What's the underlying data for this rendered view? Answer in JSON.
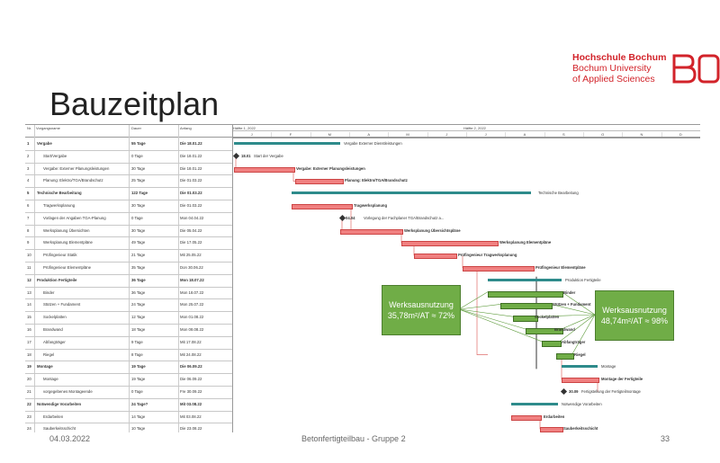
{
  "slide": {
    "title": "Bauzeitplan",
    "logo": {
      "lines": [
        "Hochschule Bochum",
        "Bochum University",
        "of Applied Sciences"
      ]
    },
    "footer": {
      "date": "04.03.2022",
      "center": "Betonfertigteilbau - Gruppe 2",
      "page": "33"
    }
  },
  "gantt": {
    "columns": [
      "Nr.",
      "Vorgangsname",
      "Dauer",
      "Anfang"
    ],
    "timescale": {
      "halves": [
        "Hälfte 1, 2022",
        "Hälfte 2, 2022"
      ],
      "months": [
        "J",
        "F",
        "M",
        "A",
        "M",
        "J",
        "J",
        "A",
        "S",
        "O",
        "N",
        "D"
      ]
    },
    "rows": [
      {
        "nr": "1",
        "name": "Vergabe",
        "dur": "55 Tage",
        "start": "Die 18.01.22",
        "summary": true
      },
      {
        "nr": "2",
        "name": "Start/Vergabe",
        "dur": "0 Tage",
        "start": "Die 18.01.22",
        "summary": false
      },
      {
        "nr": "3",
        "name": "Vergabe: Externer Planungsleistungen",
        "dur": "30 Tage",
        "start": "Die 18.01.22",
        "summary": false
      },
      {
        "nr": "4",
        "name": "Planung: Elektro/TGA/Brandschutz",
        "dur": "25 Tage",
        "start": "Die 01.03.22",
        "summary": false
      },
      {
        "nr": "5",
        "name": "Technische Bearbeitung",
        "dur": "122 Tage",
        "start": "Die 01.03.22",
        "summary": true
      },
      {
        "nr": "6",
        "name": "Tragwerksplanung",
        "dur": "30 Tage",
        "start": "Die 01.03.22",
        "summary": false
      },
      {
        "nr": "7",
        "name": "Vorlagen der Angaben TGA-Planung",
        "dur": "0 Tage",
        "start": "Mon 04.04.22",
        "summary": false
      },
      {
        "nr": "8",
        "name": "Werksplanung Übersichten",
        "dur": "30 Tage",
        "start": "Die 05.04.22",
        "summary": false
      },
      {
        "nr": "9",
        "name": "Werksplanung Elementpläne",
        "dur": "49 Tage",
        "start": "Die 17.05.22",
        "summary": false
      },
      {
        "nr": "10",
        "name": "Prüfingenieur Statik",
        "dur": "21 Tage",
        "start": "Mit 25.05.22",
        "summary": false
      },
      {
        "nr": "11",
        "name": "Prüfingenieur Elementpläne",
        "dur": "35 Tage",
        "start": "Don 30.06.22",
        "summary": false
      },
      {
        "nr": "12",
        "name": "Produktion Fertigteile",
        "dur": "36 Tage",
        "start": "Mon 18.07.22",
        "summary": true
      },
      {
        "nr": "13",
        "name": "Binder",
        "dur": "36 Tage",
        "start": "Mon 18.07.22",
        "summary": false
      },
      {
        "nr": "14",
        "name": "Stützen + Fundament",
        "dur": "24 Tage",
        "start": "Mon 25.07.22",
        "summary": false
      },
      {
        "nr": "15",
        "name": "Sockelplatten",
        "dur": "12 Tage",
        "start": "Mon 01.08.22",
        "summary": false
      },
      {
        "nr": "16",
        "name": "Brandwand",
        "dur": "18 Tage",
        "start": "Mon 08.08.22",
        "summary": false
      },
      {
        "nr": "17",
        "name": "Abfangträger",
        "dur": "9 Tage",
        "start": "Mit 17.08.22",
        "summary": false
      },
      {
        "nr": "18",
        "name": "Riegel",
        "dur": "8 Tage",
        "start": "Mit 24.08.22",
        "summary": false
      },
      {
        "nr": "19",
        "name": "Montage",
        "dur": "19 Tage",
        "start": "Die 06.09.22",
        "summary": true
      },
      {
        "nr": "20",
        "name": "Montage",
        "dur": "19 Tage",
        "start": "Die 06.09.22",
        "summary": false
      },
      {
        "nr": "21",
        "name": "vorgegebenes Montageende",
        "dur": "0 Tage",
        "start": "Fre 30.09.22",
        "summary": false
      },
      {
        "nr": "22",
        "name": "Notwendige Vorarbeiten",
        "dur": "24 Tage?",
        "start": "Mit 03.08.22",
        "summary": true
      },
      {
        "nr": "23",
        "name": "Erdarbeiten",
        "dur": "14 Tage",
        "start": "Mit 03.08.22",
        "summary": false
      },
      {
        "nr": "24",
        "name": "Sauberkeitsschicht",
        "dur": "10 Tage",
        "start": "Die 23.08.22",
        "summary": false
      }
    ],
    "bar_labels": [
      "Vergabe Externer Dienstleistungen",
      "18.01",
      "Start der Vergabe",
      "Vergabe: Externer Planungsleistungen",
      "Planung: Elektro/TGA/Brandschutz",
      "Technische Bearbeitung",
      "Tragwerksplanung",
      "04.04",
      "Vorlegung der Fachplaner TGA/Brandschutz a...",
      "Werksplanung Übersichtspläne",
      "Werksplanung Elementpläne",
      "Prüfingenieur Tragwerksplanung",
      "Prüfingenieur Elementpläne",
      "Produktion Fertigteile",
      "Binder",
      "Stützen + Fundament",
      "Sockelplatten",
      "Brandwand",
      "Abfangträger",
      "Riegel",
      "Montage",
      "Montage der Fertigteile",
      "30.09",
      "Fertigstellung der Fertigteilmontage",
      "Notwendige Vorarbeiten",
      "Erdarbeiten",
      "Sauberkeitsschicht"
    ],
    "callouts": {
      "left": {
        "line1": "Werksausnutzung",
        "line2": "35,78m²/AT ≈ 72%"
      },
      "right": {
        "line1": "Werksausnutzung",
        "line2": "48,74m²/AT ≈ 98%"
      }
    },
    "colors": {
      "task_bar": "#f08080",
      "summary_bar": "#2e8b8b",
      "production_bar": "#70ad47",
      "callout": "#70ad47",
      "brand": "#d2232a"
    }
  }
}
